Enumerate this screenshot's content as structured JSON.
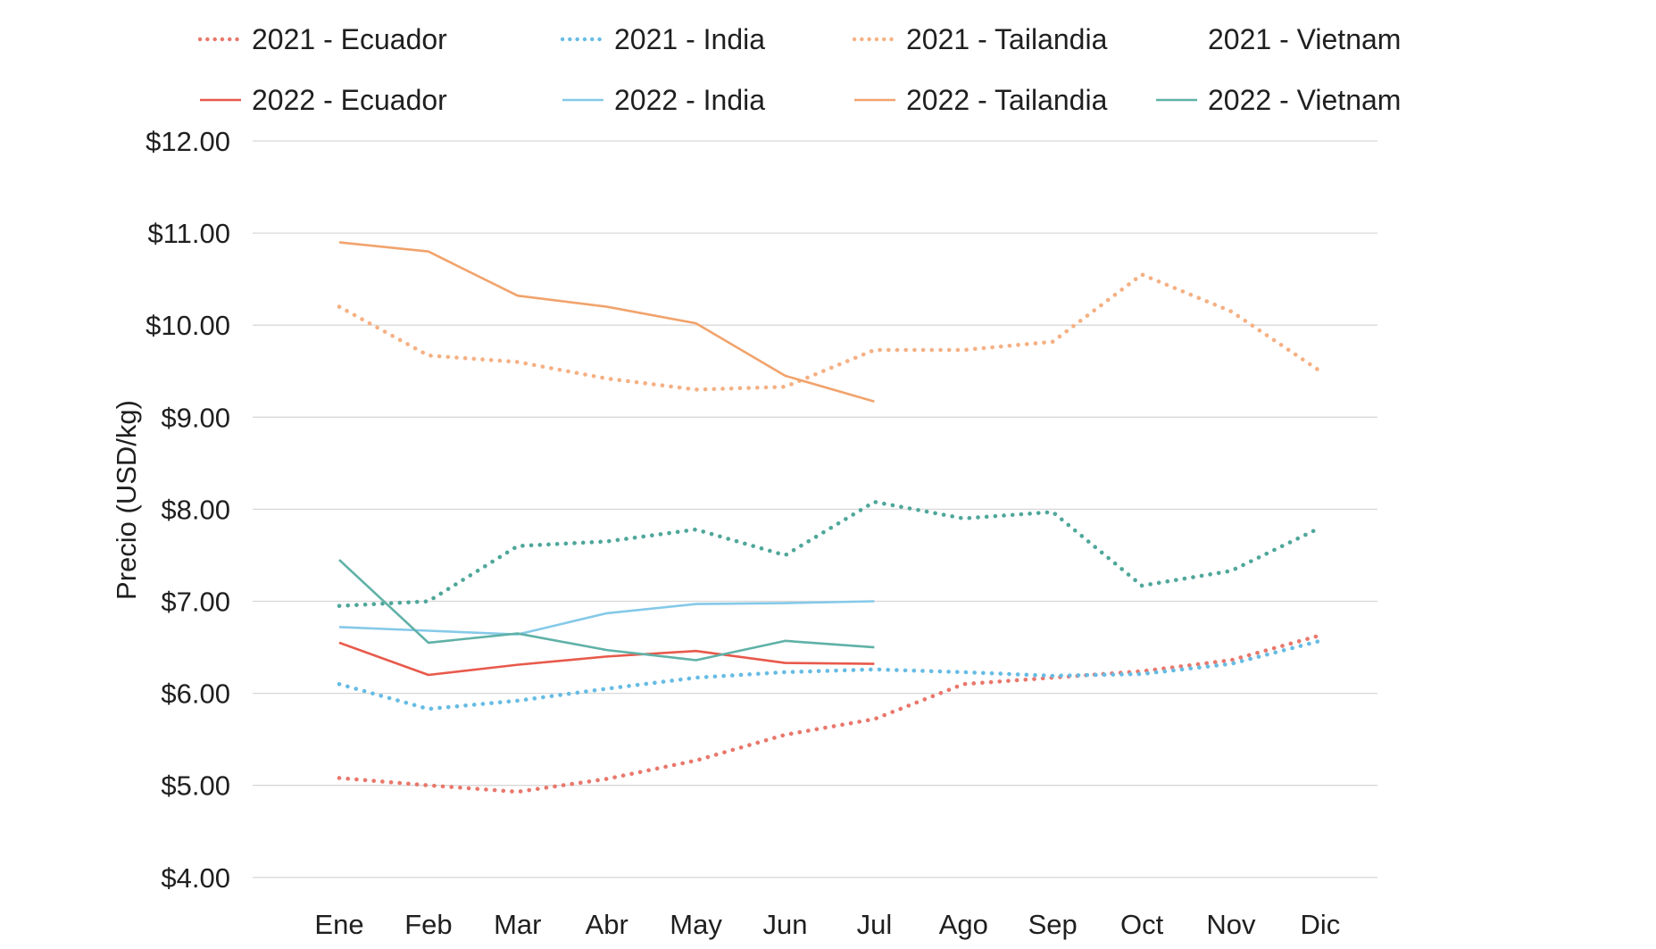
{
  "chart_data": {
    "type": "line",
    "title": "",
    "xlabel": "",
    "ylabel": "Precio (USD/kg)",
    "ylim": [
      4,
      12
    ],
    "grid": true,
    "legend_position": "top",
    "y_ticks": [
      "$12.00",
      "$11.00",
      "$10.00",
      "$9.00",
      "$8.00",
      "$7.00",
      "$6.00",
      "$5.00",
      "$4.00"
    ],
    "categories": [
      "Ene",
      "Feb",
      "Mar",
      "Abr",
      "May",
      "Jun",
      "Jul",
      "Ago",
      "Sep",
      "Oct",
      "Nov",
      "Dic"
    ],
    "series": [
      {
        "name": "2021 - Ecuador",
        "year": "2021",
        "country": "Ecuador",
        "style": "dotted",
        "color": "#E9776B",
        "legend_swatch": true,
        "values": [
          5.08,
          5.0,
          4.93,
          5.07,
          5.27,
          5.55,
          5.72,
          6.1,
          6.17,
          6.24,
          6.36,
          6.63
        ]
      },
      {
        "name": "2021 - India",
        "year": "2021",
        "country": "India",
        "style": "dotted",
        "color": "#66BCE4",
        "legend_swatch": true,
        "values": [
          6.1,
          5.83,
          5.92,
          6.05,
          6.17,
          6.23,
          6.26,
          6.23,
          6.19,
          6.21,
          6.32,
          6.57
        ]
      },
      {
        "name": "2021 - Tailandia",
        "year": "2021",
        "country": "Tailandia",
        "style": "dotted",
        "color": "#F5B083",
        "legend_swatch": true,
        "values": [
          10.2,
          9.67,
          9.6,
          9.42,
          9.3,
          9.33,
          9.73,
          9.73,
          9.82,
          10.55,
          10.15,
          9.5
        ]
      },
      {
        "name": "2021 - Vietnam",
        "year": "2021",
        "country": "Vietnam",
        "style": "dotted",
        "color": "#4FA79A",
        "legend_swatch": false,
        "values": [
          6.95,
          7.0,
          7.6,
          7.65,
          7.78,
          7.5,
          8.08,
          7.9,
          7.97,
          7.17,
          7.33,
          7.8
        ]
      },
      {
        "name": "2022 - Ecuador",
        "year": "2022",
        "country": "Ecuador",
        "style": "solid",
        "color": "#E8594B",
        "legend_swatch": true,
        "values": [
          6.55,
          6.2,
          6.31,
          6.4,
          6.46,
          6.33,
          6.32
        ]
      },
      {
        "name": "2022 - India",
        "year": "2022",
        "country": "India",
        "style": "solid",
        "color": "#85C9E9",
        "legend_swatch": true,
        "values": [
          6.72,
          6.68,
          6.64,
          6.87,
          6.97,
          6.98,
          7.0
        ]
      },
      {
        "name": "2022 - Tailandia",
        "year": "2022",
        "country": "Tailandia",
        "style": "solid",
        "color": "#F1A36C",
        "legend_swatch": true,
        "values": [
          10.9,
          10.8,
          10.32,
          10.2,
          10.02,
          9.45,
          9.17
        ]
      },
      {
        "name": "2022 - Vietnam",
        "year": "2022",
        "country": "Vietnam",
        "style": "solid",
        "color": "#5FB1A7",
        "legend_swatch": true,
        "values": [
          7.45,
          6.55,
          6.65,
          6.47,
          6.36,
          6.57,
          6.5
        ]
      }
    ],
    "grid_color": "#D8D8D8",
    "text_color": "#1f1f1f"
  }
}
